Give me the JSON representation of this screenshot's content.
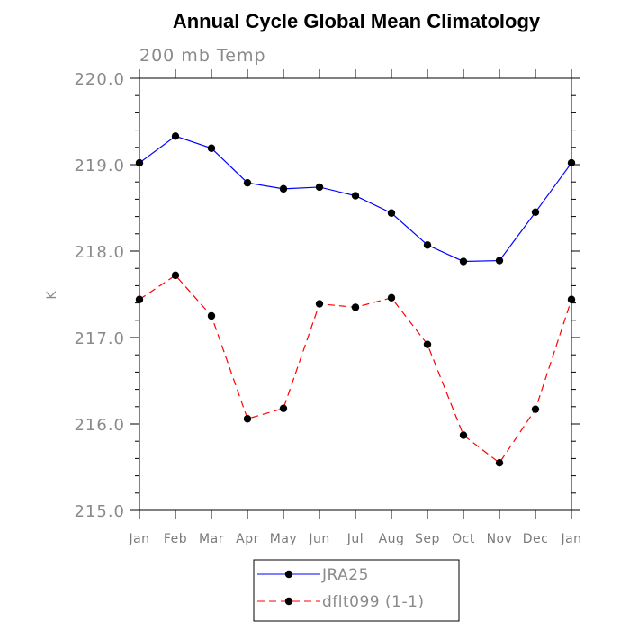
{
  "chart_data": {
    "type": "line",
    "title": "Annual Cycle Global Mean Climatology",
    "subtitle": "200 mb Temp",
    "xlabel": "",
    "ylabel": "K",
    "categories": [
      "Jan",
      "Feb",
      "Mar",
      "Apr",
      "May",
      "Jun",
      "Jul",
      "Aug",
      "Sep",
      "Oct",
      "Nov",
      "Dec",
      "Jan"
    ],
    "ylim": [
      215.0,
      220.0
    ],
    "ytick_labels": [
      "215.0",
      "216.0",
      "217.0",
      "218.0",
      "219.0",
      "220.0"
    ],
    "ytick_values": [
      215.0,
      216.0,
      217.0,
      218.0,
      219.0,
      220.0
    ],
    "yminor_step": 0.2,
    "grid": false,
    "legend_position": "bottom-center",
    "series": [
      {
        "name": "JRA25",
        "color": "#0000ff",
        "line_style": "solid",
        "marker": "circle",
        "values": [
          219.02,
          219.33,
          219.19,
          218.79,
          218.72,
          218.74,
          218.64,
          218.44,
          218.07,
          217.88,
          217.89,
          218.45,
          219.02
        ]
      },
      {
        "name": "dflt099 (1-1)",
        "color": "#ff0000",
        "line_style": "dashed",
        "marker": "circle",
        "values": [
          217.44,
          217.72,
          217.25,
          216.06,
          216.18,
          217.39,
          217.35,
          217.46,
          216.92,
          215.87,
          215.55,
          216.17,
          217.44
        ]
      }
    ]
  }
}
